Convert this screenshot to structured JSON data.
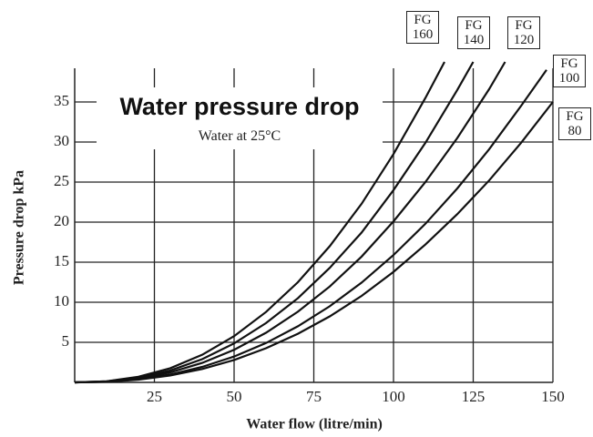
{
  "chart_data": {
    "type": "line",
    "title": "Water pressure drop",
    "subtitle": "Water at 25°C",
    "x_label": "Water flow (litre/min)",
    "y_label": "Pressure drop kPa",
    "xlim": [
      0,
      150
    ],
    "ylim": [
      0,
      40
    ],
    "xticks": [
      25,
      50,
      75,
      100,
      125,
      150
    ],
    "yticks": [
      5,
      10,
      15,
      20,
      25,
      30,
      35
    ],
    "grid": true,
    "series": [
      {
        "name": "FG 160",
        "color": "#111",
        "x": [
          0,
          10,
          20,
          30,
          40,
          50,
          60,
          70,
          80,
          90,
          100,
          110,
          116
        ],
        "values": [
          0,
          0.14,
          0.7,
          1.77,
          3.44,
          5.77,
          8.78,
          12.5,
          17.0,
          22.3,
          28.5,
          35.5,
          40
        ]
      },
      {
        "name": "FG 140",
        "color": "#111",
        "x": [
          0,
          10,
          20,
          30,
          40,
          50,
          60,
          70,
          80,
          90,
          100,
          110,
          120,
          125
        ],
        "values": [
          0,
          0.12,
          0.59,
          1.49,
          2.9,
          4.86,
          7.4,
          10.5,
          14.3,
          18.7,
          24.0,
          29.9,
          36.5,
          40
        ]
      },
      {
        "name": "FG 120",
        "color": "#111",
        "x": [
          0,
          10,
          20,
          30,
          40,
          50,
          60,
          70,
          80,
          90,
          100,
          110,
          120,
          130,
          135
        ],
        "values": [
          0,
          0.1,
          0.49,
          1.25,
          2.43,
          4.07,
          6.19,
          8.82,
          11.97,
          15.7,
          20.1,
          25.0,
          30.5,
          36.6,
          40
        ]
      },
      {
        "name": "FG 100",
        "color": "#111",
        "x": [
          0,
          10,
          20,
          30,
          40,
          50,
          60,
          70,
          80,
          90,
          100,
          110,
          120,
          130,
          140,
          148
        ],
        "values": [
          0,
          0.08,
          0.39,
          0.99,
          1.93,
          3.23,
          4.91,
          7.0,
          9.5,
          12.45,
          15.9,
          19.8,
          24.2,
          29.1,
          34.5,
          39
        ]
      },
      {
        "name": "FG 80",
        "color": "#111",
        "x": [
          0,
          10,
          20,
          30,
          40,
          50,
          60,
          70,
          80,
          90,
          100,
          110,
          120,
          130,
          140,
          150
        ],
        "values": [
          0,
          0.07,
          0.34,
          0.86,
          1.67,
          2.8,
          4.26,
          6.07,
          8.24,
          10.8,
          13.8,
          17.2,
          21.0,
          25.2,
          29.9,
          35
        ]
      }
    ]
  }
}
